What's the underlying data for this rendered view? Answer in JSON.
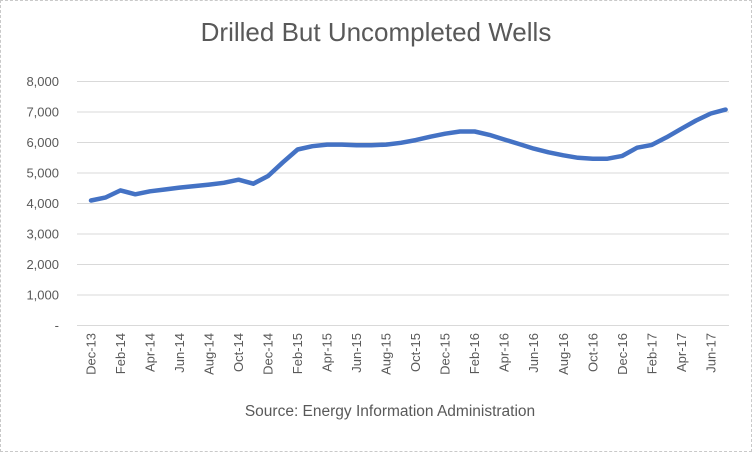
{
  "chart_data": {
    "type": "line",
    "title": "Drilled But Uncompleted Wells",
    "source_note": "Source: Energy Information Administration",
    "x": [
      "Dec-13",
      "Jan-14",
      "Feb-14",
      "Mar-14",
      "Apr-14",
      "May-14",
      "Jun-14",
      "Jul-14",
      "Aug-14",
      "Sep-14",
      "Oct-14",
      "Nov-14",
      "Dec-14",
      "Jan-15",
      "Feb-15",
      "Mar-15",
      "Apr-15",
      "May-15",
      "Jun-15",
      "Jul-15",
      "Aug-15",
      "Sep-15",
      "Oct-15",
      "Nov-15",
      "Dec-15",
      "Jan-16",
      "Feb-16",
      "Mar-16",
      "Apr-16",
      "May-16",
      "Jun-16",
      "Jul-16",
      "Aug-16",
      "Sep-16",
      "Oct-16",
      "Nov-16",
      "Dec-16",
      "Jan-17",
      "Feb-17",
      "Mar-17",
      "Apr-17",
      "May-17",
      "Jun-17",
      "Jul-17"
    ],
    "series": [
      {
        "name": "Drilled but uncompleted wells",
        "values": [
          4100,
          4200,
          4430,
          4300,
          4400,
          4460,
          4520,
          4570,
          4620,
          4680,
          4780,
          4650,
          4900,
          5350,
          5770,
          5880,
          5930,
          5930,
          5910,
          5910,
          5930,
          5990,
          6080,
          6190,
          6290,
          6360,
          6360,
          6250,
          6100,
          5950,
          5800,
          5680,
          5580,
          5500,
          5470,
          5470,
          5560,
          5830,
          5920,
          6170,
          6450,
          6720,
          6950,
          7080
        ]
      }
    ],
    "x_tick_every": 2,
    "x_tick_labels_shown": [
      "Dec-13",
      "Feb-14",
      "Apr-14",
      "Jun-14",
      "Aug-14",
      "Oct-14",
      "Dec-14",
      "Feb-15",
      "Apr-15",
      "Jun-15",
      "Aug-15",
      "Oct-15",
      "Dec-15",
      "Feb-16",
      "Apr-16",
      "Jun-16",
      "Aug-16",
      "Oct-16",
      "Dec-16",
      "Feb-17",
      "Apr-17",
      "Jun-17"
    ],
    "y_tick_labels": [
      "-",
      "1,000",
      "2,000",
      "3,000",
      "4,000",
      "5,000",
      "6,000",
      "7,000",
      "8,000"
    ],
    "ylim": [
      0,
      8000
    ],
    "y_tick_step": 1000,
    "grid": true,
    "legend": false,
    "xlabel": "",
    "ylabel": "",
    "colors": {
      "line": "#4472C4",
      "gridline": "#D9D9D9",
      "text": "#595959",
      "frame_border": "#C9C9C9",
      "background": "#FFFFFF"
    }
  }
}
